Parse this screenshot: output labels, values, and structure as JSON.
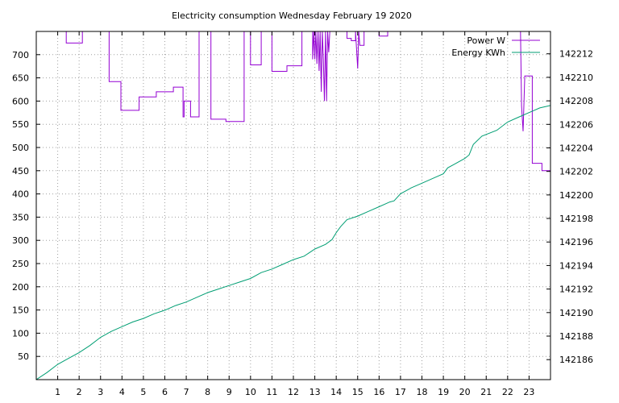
{
  "chart_data": {
    "type": "line",
    "title": "Electricity consumption Wednesday February 19 2020",
    "xlabel": "",
    "ylabel": "",
    "y2label": "",
    "x_range": [
      0,
      24
    ],
    "x_ticks": [
      1,
      2,
      3,
      4,
      5,
      6,
      7,
      8,
      9,
      10,
      11,
      12,
      13,
      14,
      15,
      16,
      17,
      18,
      19,
      20,
      21,
      22,
      23
    ],
    "y_range": [
      0,
      750
    ],
    "y_ticks": [
      50,
      100,
      150,
      200,
      250,
      300,
      350,
      400,
      450,
      500,
      550,
      600,
      650,
      700
    ],
    "y2_range": [
      142184.3,
      142213.9
    ],
    "y2_ticks": [
      142186,
      142188,
      142190,
      142192,
      142194,
      142196,
      142198,
      142200,
      142202,
      142204,
      142206,
      142208,
      142210,
      142212
    ],
    "grid": true,
    "legend_position": "top-right",
    "series": [
      {
        "name": "Power W",
        "axis": "y",
        "color": "#9400d3",
        "step": true,
        "points": [
          [
            0,
            750
          ],
          [
            1.4,
            750
          ],
          [
            1.4,
            725
          ],
          [
            2.15,
            725
          ],
          [
            2.15,
            750
          ],
          [
            3.4,
            750
          ],
          [
            3.4,
            642
          ],
          [
            3.95,
            642
          ],
          [
            3.95,
            580
          ],
          [
            4.8,
            580
          ],
          [
            4.8,
            609
          ],
          [
            5.6,
            609
          ],
          [
            5.6,
            620
          ],
          [
            6.4,
            620
          ],
          [
            6.4,
            630
          ],
          [
            6.85,
            630
          ],
          [
            6.85,
            566
          ],
          [
            6.9,
            566
          ],
          [
            6.9,
            600
          ],
          [
            7.2,
            600
          ],
          [
            7.2,
            566
          ],
          [
            7.6,
            566
          ],
          [
            7.6,
            750
          ],
          [
            8.15,
            750
          ],
          [
            8.15,
            561
          ],
          [
            8.85,
            561
          ],
          [
            8.85,
            556
          ],
          [
            9.7,
            556
          ],
          [
            9.7,
            750
          ],
          [
            10.0,
            750
          ],
          [
            10.0,
            678
          ],
          [
            10.5,
            678
          ],
          [
            10.5,
            750
          ],
          [
            11.0,
            750
          ],
          [
            11.0,
            664
          ],
          [
            11.7,
            664
          ],
          [
            11.7,
            676
          ],
          [
            12.4,
            676
          ],
          [
            12.4,
            750
          ],
          [
            12.9,
            750
          ],
          [
            12.9,
            690
          ],
          [
            12.96,
            750
          ],
          [
            13.0,
            690
          ],
          [
            13.05,
            750
          ],
          [
            13.1,
            680
          ],
          [
            13.15,
            750
          ],
          [
            13.2,
            665
          ],
          [
            13.25,
            750
          ],
          [
            13.3,
            620
          ],
          [
            13.35,
            750
          ],
          [
            13.4,
            690
          ],
          [
            13.45,
            600
          ],
          [
            13.5,
            750
          ],
          [
            13.55,
            600
          ],
          [
            13.6,
            750
          ],
          [
            13.65,
            705
          ],
          [
            13.7,
            750
          ],
          [
            14.5,
            750
          ],
          [
            14.5,
            735
          ],
          [
            14.7,
            735
          ],
          [
            14.7,
            730
          ],
          [
            14.9,
            730
          ],
          [
            14.9,
            750
          ],
          [
            15.0,
            670
          ],
          [
            15.05,
            750
          ],
          [
            15.1,
            720
          ],
          [
            15.3,
            720
          ],
          [
            15.3,
            750
          ],
          [
            16.0,
            750
          ],
          [
            16.0,
            740
          ],
          [
            16.4,
            740
          ],
          [
            16.4,
            750
          ],
          [
            22.6,
            750
          ],
          [
            22.65,
            590
          ],
          [
            22.72,
            535
          ],
          [
            22.8,
            654
          ],
          [
            23.15,
            654
          ],
          [
            23.15,
            466
          ],
          [
            23.6,
            466
          ],
          [
            23.6,
            450
          ],
          [
            24.0,
            450
          ]
        ]
      },
      {
        "name": "Energy KWh",
        "axis": "y2",
        "color": "#009e73",
        "step": false,
        "points": [
          [
            0,
            142184.3
          ],
          [
            0.5,
            142184.9
          ],
          [
            1,
            142185.6
          ],
          [
            1.5,
            142186.1
          ],
          [
            2,
            142186.6
          ],
          [
            2.5,
            142187.2
          ],
          [
            3,
            142187.9
          ],
          [
            3.5,
            142188.4
          ],
          [
            4,
            142188.8
          ],
          [
            4.5,
            142189.2
          ],
          [
            5,
            142189.5
          ],
          [
            5.5,
            142189.9
          ],
          [
            6,
            142190.2
          ],
          [
            6.5,
            142190.6
          ],
          [
            7,
            142190.9
          ],
          [
            7.5,
            142191.3
          ],
          [
            8,
            142191.7
          ],
          [
            8.5,
            142192.0
          ],
          [
            9,
            142192.3
          ],
          [
            9.5,
            142192.6
          ],
          [
            10,
            142192.9
          ],
          [
            10.5,
            142193.4
          ],
          [
            11,
            142193.7
          ],
          [
            11.5,
            142194.1
          ],
          [
            12,
            142194.5
          ],
          [
            12.5,
            142194.8
          ],
          [
            13,
            142195.4
          ],
          [
            13.5,
            142195.8
          ],
          [
            13.8,
            142196.2
          ],
          [
            14,
            142196.8
          ],
          [
            14.2,
            142197.3
          ],
          [
            14.5,
            142197.9
          ],
          [
            15,
            142198.2
          ],
          [
            15.5,
            142198.6
          ],
          [
            16,
            142199.0
          ],
          [
            16.5,
            142199.4
          ],
          [
            16.7,
            142199.5
          ],
          [
            17,
            142200.1
          ],
          [
            17.5,
            142200.6
          ],
          [
            18,
            142201.0
          ],
          [
            18.5,
            142201.4
          ],
          [
            19,
            142201.8
          ],
          [
            19.2,
            142202.3
          ],
          [
            19.5,
            142202.6
          ],
          [
            20,
            142203.1
          ],
          [
            20.2,
            142203.4
          ],
          [
            20.4,
            142204.3
          ],
          [
            20.8,
            142205.0
          ],
          [
            21.5,
            142205.5
          ],
          [
            22,
            142206.2
          ],
          [
            22.5,
            142206.6
          ],
          [
            23,
            142207.0
          ],
          [
            23.5,
            142207.4
          ],
          [
            24,
            142207.6
          ]
        ]
      }
    ]
  }
}
